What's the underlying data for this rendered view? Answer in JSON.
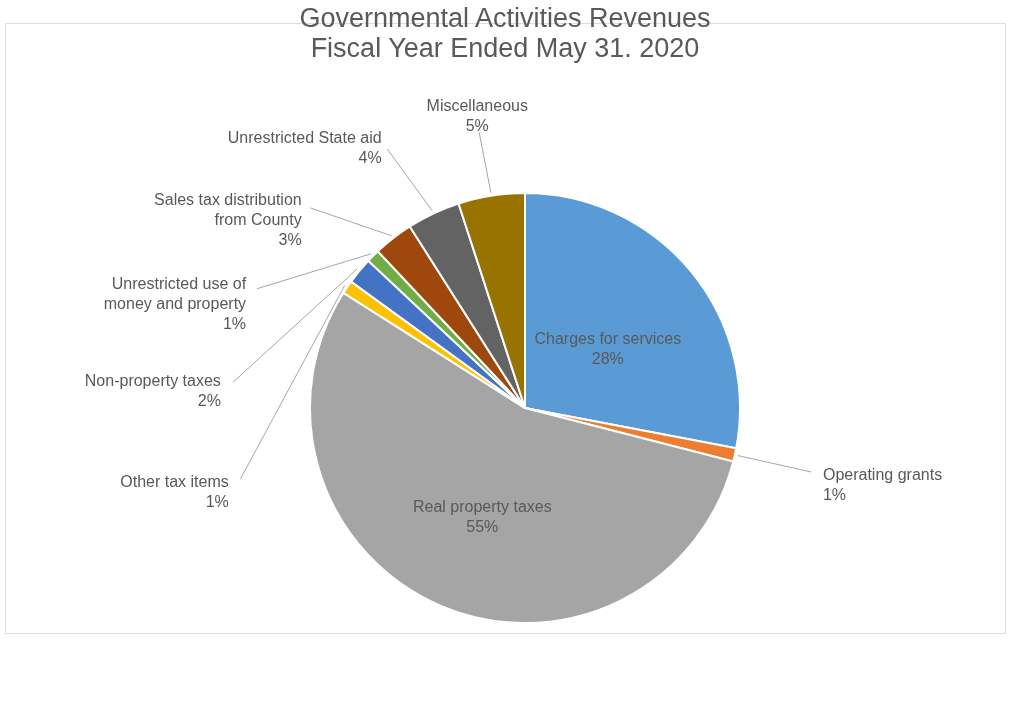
{
  "chart_data": {
    "type": "pie",
    "title": "Governmental Activities Revenues",
    "subtitle": "Fiscal Year Ended May 31. 2020",
    "categories": [
      "Charges for services",
      "Operating grants",
      "Real property taxes",
      "Other tax items",
      "Non-property taxes",
      "Unrestricted use of money and property",
      "Sales tax distribution from County",
      "Unrestricted State aid",
      "Miscellaneous"
    ],
    "values": [
      28,
      1,
      55,
      1,
      2,
      1,
      3,
      4,
      5
    ],
    "colors": [
      "#5b9bd5",
      "#ed7d31",
      "#a5a5a5",
      "#ffc000",
      "#4472c4",
      "#70ad47",
      "#9e480e",
      "#636363",
      "#997300"
    ],
    "value_labels": [
      "28%",
      "1%",
      "55%",
      "1%",
      "2%",
      "1%",
      "3%",
      "4%",
      "5%"
    ],
    "legend": false
  }
}
